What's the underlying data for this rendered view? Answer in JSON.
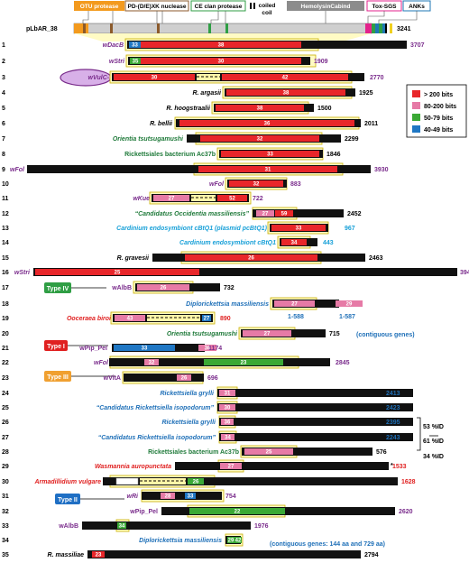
{
  "header": {
    "domains": [
      {
        "label": "OTU protease",
        "color": "#f39a1e"
      },
      {
        "label": "PD-(D/E)XK nuclease",
        "color": "#8b5a2b"
      },
      {
        "label": "CE clan protease",
        "color": "#2f9e44"
      },
      {
        "label": "coiled",
        "color": "#000000"
      },
      {
        "label": "coil",
        "color": "#000000"
      },
      {
        "label": "HemolysinCabind",
        "color": "#8c8c8c"
      },
      {
        "label": "Tox-SGS",
        "color": "#e3238c"
      },
      {
        "label": "ANKs",
        "color": "#1f77b4"
      }
    ],
    "ref_name": "pLbAR_38",
    "ref_length": "3241"
  },
  "legend": [
    {
      "label": "> 200 bits",
      "color": "#e8262a"
    },
    {
      "label": "80-200 bits",
      "color": "#e67aa6"
    },
    {
      "label": "50-79 bits",
      "color": "#3aa935"
    },
    {
      "label": "40-49 bits",
      "color": "#1f77c4"
    }
  ],
  "types": [
    {
      "label": "Type IV",
      "color": "#2f9e44"
    },
    {
      "label": "Type I",
      "color": "#e02020"
    },
    {
      "label": "Type III",
      "color": "#f0a030"
    },
    {
      "label": "Type II",
      "color": "#1f6fc4"
    }
  ],
  "brackets": [
    "53 %ID",
    "61 %ID",
    "34 %ID"
  ],
  "notes": {
    "row18": "(contiguous genes)",
    "row34": "(contiguous genes: 144 aa and 729 aa)",
    "range1": "1-588",
    "range2": "1-587",
    "star": "*"
  },
  "rows": [
    {
      "n": "1",
      "label": "wDacB",
      "lcol": "#7a2c8c",
      "it": 1,
      "len": "3707",
      "lencol": "#7a2c8c"
    },
    {
      "n": "2",
      "label": "wStri",
      "lcol": "#7a2c8c",
      "it": 1,
      "len": "1909",
      "lencol": "#7a2c8c"
    },
    {
      "n": "3",
      "label": "wVulC-1",
      "lcol": "#7a2c8c",
      "it": 1,
      "len": "2770",
      "lencol": "#7a2c8c"
    },
    {
      "n": "4",
      "label": "R. argasii",
      "lcol": "#000000",
      "it": 1,
      "len": "1925",
      "lencol": "#000000"
    },
    {
      "n": "5",
      "label": "R. hoogstraalii",
      "lcol": "#000000",
      "it": 1,
      "len": "1500",
      "lencol": "#000000"
    },
    {
      "n": "6",
      "label": "R. bellii",
      "lcol": "#000000",
      "it": 1,
      "len": "2011",
      "lencol": "#000000"
    },
    {
      "n": "7",
      "label": "Orientia tsutsugamushi",
      "lcol": "#1f7a3a",
      "it": 1,
      "len": "2299",
      "lencol": "#000000"
    },
    {
      "n": "8",
      "label": "Rickettsiales bacterium Ac37b",
      "lcol": "#1f7a3a",
      "it": 0,
      "len": "1846",
      "lencol": "#000000"
    },
    {
      "n": "9",
      "label": "wFol",
      "lcol": "#7a2c8c",
      "it": 1,
      "len": "3930",
      "lencol": "#7a2c8c"
    },
    {
      "n": "10",
      "label": "wFol",
      "lcol": "#7a2c8c",
      "it": 1,
      "len": "883",
      "lencol": "#7a2c8c"
    },
    {
      "n": "11",
      "label": "wKue",
      "lcol": "#7a2c8c",
      "it": 1,
      "len": "722",
      "lencol": "#7a2c8c"
    },
    {
      "n": "12",
      "label": "“Candidatus Occidentia massiliensis”",
      "lcol": "#1f7a3a",
      "it": 1,
      "len": "2452",
      "lencol": "#000000"
    },
    {
      "n": "13",
      "label": "Cardinium endosymbiont cBtQ1 (plasmid pcBtQ1)",
      "lcol": "#18a0d8",
      "it": 1,
      "len": "967",
      "lencol": "#18a0d8"
    },
    {
      "n": "14",
      "label": "Cardinium endosymbiont cBtQ1",
      "lcol": "#18a0d8",
      "it": 1,
      "len": "443",
      "lencol": "#18a0d8"
    },
    {
      "n": "15",
      "label": "R. gravesii",
      "lcol": "#000000",
      "it": 1,
      "len": "2463",
      "lencol": "#000000"
    },
    {
      "n": "16",
      "label": "wStri",
      "lcol": "#7a2c8c",
      "it": 1,
      "len": "3941",
      "lencol": "#7a2c8c"
    },
    {
      "n": "17",
      "label": "wAlbB",
      "lcol": "#7a2c8c",
      "it": 0,
      "len": "732",
      "lencol": "#000000"
    },
    {
      "n": "18",
      "label": "Diplorickettsia massiliensis",
      "lcol": "#1f70b8",
      "it": 1,
      "len": "",
      "lencol": "#000000"
    },
    {
      "n": "19",
      "label": "Ooceraea biroi",
      "lcol": "#e02020",
      "it": 1,
      "len": "890",
      "lencol": "#e02020"
    },
    {
      "n": "20",
      "label": "Orientia tsutsugamushi",
      "lcol": "#1f7a3a",
      "it": 1,
      "len": "715",
      "lencol": "#000000"
    },
    {
      "n": "21",
      "label": "wPip_Pel",
      "lcol": "#7a2c8c",
      "it": 0,
      "len": "1174",
      "lencol": "#7a2c8c"
    },
    {
      "n": "22",
      "label": "wFol",
      "lcol": "#7a2c8c",
      "it": 1,
      "len": "2845",
      "lencol": "#7a2c8c"
    },
    {
      "n": "23",
      "label": "wVitA",
      "lcol": "#7a2c8c",
      "it": 0,
      "len": "696",
      "lencol": "#7a2c8c"
    },
    {
      "n": "24",
      "label": "Rickettsiella grylli",
      "lcol": "#1f70b8",
      "it": 1,
      "len": "2413",
      "lencol": "#1f70b8"
    },
    {
      "n": "25",
      "label": "“Candidatus Rickettsiella isopodorum”",
      "lcol": "#1f70b8",
      "it": 1,
      "len": "2423",
      "lencol": "#1f70b8"
    },
    {
      "n": "26",
      "label": "Rickettsiella grylli",
      "lcol": "#1f70b8",
      "it": 1,
      "len": "2395",
      "lencol": "#1f70b8"
    },
    {
      "n": "27",
      "label": "“Candidatus Rickettsiella isopodorum”",
      "lcol": "#1f70b8",
      "it": 1,
      "len": "2243",
      "lencol": "#1f70b8"
    },
    {
      "n": "28",
      "label": "Rickettsiales bacterium Ac37b",
      "lcol": "#1f7a3a",
      "it": 0,
      "len": "576",
      "lencol": "#000000"
    },
    {
      "n": "29",
      "label": "Wasmannia auropunctata",
      "lcol": "#e02020",
      "it": 1,
      "len": "1533",
      "lencol": "#e02020"
    },
    {
      "n": "30",
      "label": "Armadillidium vulgare",
      "lcol": "#e02020",
      "it": 1,
      "len": "1628",
      "lencol": "#e02020"
    },
    {
      "n": "31",
      "label": "wRi",
      "lcol": "#7a2c8c",
      "it": 1,
      "len": "754",
      "lencol": "#7a2c8c"
    },
    {
      "n": "32",
      "label": "wPip_Pel",
      "lcol": "#7a2c8c",
      "it": 0,
      "len": "2620",
      "lencol": "#7a2c8c"
    },
    {
      "n": "33",
      "label": "wAlbB",
      "lcol": "#7a2c8c",
      "it": 0,
      "len": "1976",
      "lencol": "#7a2c8c"
    },
    {
      "n": "34",
      "label": "Diplorickettsia massiliensis",
      "lcol": "#1f70b8",
      "it": 1,
      "len": "",
      "lencol": "#000000"
    },
    {
      "n": "35",
      "label": "R. massiliae",
      "lcol": "#000000",
      "it": 1,
      "len": "2794",
      "lencol": "#000000"
    }
  ]
}
